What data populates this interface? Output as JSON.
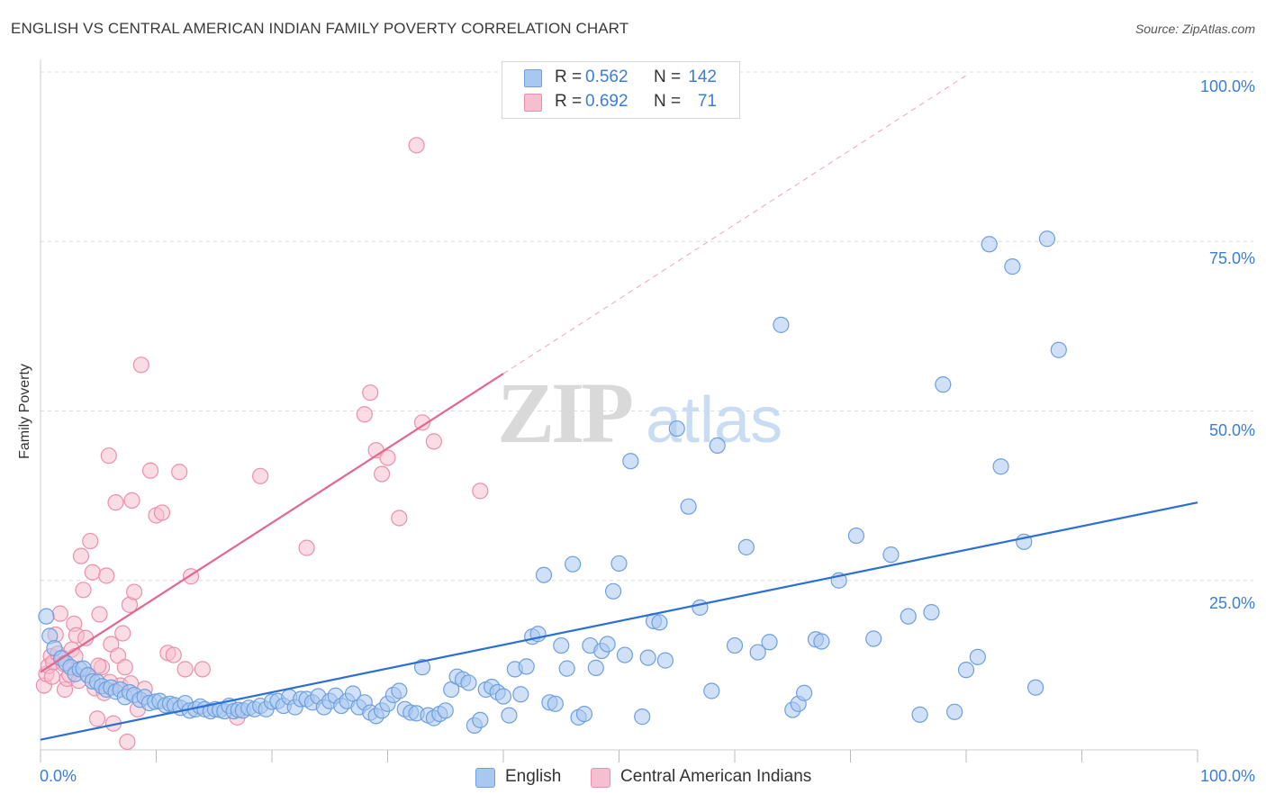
{
  "header": {
    "title": "ENGLISH VS CENTRAL AMERICAN INDIAN FAMILY POVERTY CORRELATION CHART",
    "source": "Source: ZipAtlas.com"
  },
  "watermark": {
    "zip": "ZIP",
    "atlas": "atlas"
  },
  "colors": {
    "english_fill": "#a9c8f0",
    "english_stroke": "#6e9fe0",
    "english_line": "#2b6fd6",
    "cai_fill": "#f6bfcf",
    "cai_stroke": "#ec8fab",
    "cai_line": "#e4668e",
    "axis_text": "#3b7dd8",
    "grid": "#dcdcdc"
  },
  "legend": {
    "rows": [
      {
        "r_label": "R =",
        "r_value": "0.562",
        "n_label": "N =",
        "n_value": "142"
      },
      {
        "r_label": "R =",
        "r_value": "0.692",
        "n_label": "N =",
        "n_value": "71"
      }
    ]
  },
  "bottom_legend": [
    "English",
    "Central American Indians"
  ],
  "chart_data": {
    "type": "scatter",
    "title": "ENGLISH VS CENTRAL AMERICAN INDIAN FAMILY POVERTY CORRELATION CHART",
    "xlabel": "",
    "ylabel": "Family Poverty",
    "xlim": [
      0,
      100
    ],
    "ylim": [
      0,
      100
    ],
    "x_tick_labels": [
      "0.0%",
      "100.0%"
    ],
    "y_ticks": [
      25,
      50,
      75,
      100
    ],
    "y_tick_labels": [
      "25.0%",
      "50.0%",
      "75.0%",
      "100.0%"
    ],
    "grid": true,
    "legend_position": "top-center",
    "series": [
      {
        "name": "English",
        "r": 0.562,
        "n": 142,
        "trend": {
          "x": [
            0,
            100
          ],
          "y": [
            1.5,
            36.5
          ],
          "style": "solid"
        },
        "points": [
          [
            0.5,
            19.7
          ],
          [
            0.8,
            16.8
          ],
          [
            1.2,
            15.0
          ],
          [
            1.8,
            13.5
          ],
          [
            2.2,
            12.8
          ],
          [
            2.6,
            12.2
          ],
          [
            3.0,
            11.2
          ],
          [
            3.4,
            11.9
          ],
          [
            3.7,
            12.0
          ],
          [
            4.1,
            11.0
          ],
          [
            4.5,
            10.1
          ],
          [
            4.9,
            10.0
          ],
          [
            5.3,
            9.4
          ],
          [
            5.7,
            8.9
          ],
          [
            6.1,
            9.2
          ],
          [
            6.5,
            8.6
          ],
          [
            6.9,
            8.9
          ],
          [
            7.3,
            7.8
          ],
          [
            7.7,
            8.5
          ],
          [
            8.1,
            8.1
          ],
          [
            8.6,
            7.4
          ],
          [
            9.0,
            7.8
          ],
          [
            9.4,
            6.9
          ],
          [
            9.9,
            7.1
          ],
          [
            10.3,
            7.2
          ],
          [
            10.8,
            6.6
          ],
          [
            11.2,
            6.8
          ],
          [
            11.6,
            6.6
          ],
          [
            12.1,
            6.2
          ],
          [
            12.5,
            6.9
          ],
          [
            12.9,
            5.8
          ],
          [
            13.4,
            6.0
          ],
          [
            13.8,
            6.4
          ],
          [
            14.2,
            6.0
          ],
          [
            14.7,
            5.7
          ],
          [
            15.1,
            6.0
          ],
          [
            15.5,
            5.9
          ],
          [
            15.9,
            5.7
          ],
          [
            16.3,
            6.5
          ],
          [
            16.7,
            5.7
          ],
          [
            17.1,
            5.9
          ],
          [
            17.5,
            5.8
          ],
          [
            18.0,
            6.2
          ],
          [
            18.5,
            6.0
          ],
          [
            19.0,
            6.5
          ],
          [
            19.5,
            6.0
          ],
          [
            20.0,
            7.1
          ],
          [
            20.5,
            7.2
          ],
          [
            21.0,
            6.5
          ],
          [
            21.5,
            7.8
          ],
          [
            22.0,
            6.3
          ],
          [
            22.5,
            7.5
          ],
          [
            23.0,
            7.5
          ],
          [
            23.5,
            7.0
          ],
          [
            24.0,
            7.9
          ],
          [
            24.5,
            6.3
          ],
          [
            25.0,
            7.2
          ],
          [
            25.5,
            8.0
          ],
          [
            26.0,
            6.5
          ],
          [
            26.5,
            7.2
          ],
          [
            27.0,
            8.3
          ],
          [
            27.5,
            6.3
          ],
          [
            28.0,
            7.0
          ],
          [
            28.5,
            5.5
          ],
          [
            29.0,
            5.0
          ],
          [
            29.5,
            5.8
          ],
          [
            30.0,
            6.8
          ],
          [
            30.5,
            8.1
          ],
          [
            31.0,
            8.7
          ],
          [
            31.5,
            6.0
          ],
          [
            32.0,
            5.5
          ],
          [
            32.5,
            5.4
          ],
          [
            33.0,
            12.2
          ],
          [
            33.5,
            5.1
          ],
          [
            34.0,
            4.7
          ],
          [
            34.5,
            5.3
          ],
          [
            35.0,
            5.8
          ],
          [
            35.5,
            8.9
          ],
          [
            36.0,
            10.8
          ],
          [
            36.5,
            10.4
          ],
          [
            37.0,
            9.9
          ],
          [
            37.5,
            3.6
          ],
          [
            38.0,
            4.4
          ],
          [
            38.5,
            8.9
          ],
          [
            39.0,
            9.3
          ],
          [
            39.5,
            8.5
          ],
          [
            40.0,
            7.9
          ],
          [
            40.5,
            5.1
          ],
          [
            41.0,
            11.9
          ],
          [
            41.5,
            8.2
          ],
          [
            42.0,
            12.3
          ],
          [
            42.5,
            16.7
          ],
          [
            43.0,
            17.1
          ],
          [
            43.5,
            25.8
          ],
          [
            44.0,
            7.0
          ],
          [
            44.5,
            6.8
          ],
          [
            45.0,
            15.4
          ],
          [
            45.5,
            12.0
          ],
          [
            46.0,
            27.4
          ],
          [
            46.5,
            4.8
          ],
          [
            47.0,
            5.3
          ],
          [
            47.5,
            15.4
          ],
          [
            48.0,
            12.1
          ],
          [
            48.5,
            14.6
          ],
          [
            49.0,
            15.6
          ],
          [
            49.5,
            23.4
          ],
          [
            50.0,
            27.5
          ],
          [
            50.5,
            14.0
          ],
          [
            51.0,
            42.6
          ],
          [
            52.0,
            4.9
          ],
          [
            52.5,
            13.6
          ],
          [
            53.0,
            19.0
          ],
          [
            53.5,
            18.8
          ],
          [
            54.0,
            13.2
          ],
          [
            55.0,
            47.4
          ],
          [
            56.0,
            35.9
          ],
          [
            57.0,
            21.0
          ],
          [
            58.0,
            8.7
          ],
          [
            58.5,
            44.9
          ],
          [
            60.0,
            15.4
          ],
          [
            61.0,
            29.9
          ],
          [
            62.0,
            14.4
          ],
          [
            63.0,
            15.9
          ],
          [
            64.0,
            62.7
          ],
          [
            65.0,
            5.9
          ],
          [
            65.5,
            6.8
          ],
          [
            66.0,
            8.4
          ],
          [
            67.0,
            16.3
          ],
          [
            67.5,
            16.0
          ],
          [
            69.0,
            25.0
          ],
          [
            70.5,
            31.6
          ],
          [
            72.0,
            16.4
          ],
          [
            73.5,
            28.8
          ],
          [
            75.0,
            19.7
          ],
          [
            76.0,
            5.2
          ],
          [
            77.0,
            20.3
          ],
          [
            78.0,
            53.9
          ],
          [
            79.0,
            5.6
          ],
          [
            80.0,
            11.8
          ],
          [
            81.0,
            13.7
          ],
          [
            82.0,
            74.6
          ],
          [
            83.0,
            41.8
          ],
          [
            84.0,
            71.3
          ],
          [
            85.0,
            30.7
          ],
          [
            86.0,
            9.2
          ],
          [
            87.0,
            75.4
          ],
          [
            88.0,
            59.0
          ]
        ]
      },
      {
        "name": "Central American Indians",
        "r": 0.692,
        "n": 71,
        "trend": {
          "x": [
            0,
            40
          ],
          "y": [
            11.5,
            55.5
          ],
          "style": "solid",
          "extension": {
            "x": [
              40,
              80
            ],
            "y": [
              55.5,
              99.5
            ],
            "style": "dashed"
          }
        },
        "points": [
          [
            0.3,
            9.5
          ],
          [
            0.5,
            11.2
          ],
          [
            0.7,
            12.4
          ],
          [
            0.9,
            13.8
          ],
          [
            1.1,
            12.9
          ],
          [
            1.3,
            17.0
          ],
          [
            1.5,
            14.2
          ],
          [
            1.7,
            20.1
          ],
          [
            1.9,
            13.6
          ],
          [
            2.1,
            8.9
          ],
          [
            2.3,
            10.5
          ],
          [
            2.5,
            11.1
          ],
          [
            2.7,
            14.8
          ],
          [
            2.9,
            18.6
          ],
          [
            3.1,
            16.9
          ],
          [
            3.3,
            10.2
          ],
          [
            3.5,
            28.6
          ],
          [
            3.7,
            23.6
          ],
          [
            3.9,
            16.5
          ],
          [
            4.1,
            11.1
          ],
          [
            4.3,
            30.8
          ],
          [
            4.5,
            26.2
          ],
          [
            4.7,
            9.1
          ],
          [
            4.9,
            4.6
          ],
          [
            5.1,
            20.0
          ],
          [
            5.3,
            12.2
          ],
          [
            5.5,
            8.4
          ],
          [
            5.7,
            25.7
          ],
          [
            5.9,
            43.4
          ],
          [
            6.1,
            15.6
          ],
          [
            6.3,
            3.9
          ],
          [
            6.5,
            36.5
          ],
          [
            6.7,
            13.9
          ],
          [
            6.9,
            9.5
          ],
          [
            7.1,
            17.2
          ],
          [
            7.3,
            12.2
          ],
          [
            7.5,
            1.2
          ],
          [
            7.7,
            21.4
          ],
          [
            7.9,
            36.8
          ],
          [
            8.1,
            23.3
          ],
          [
            8.4,
            6.0
          ],
          [
            8.7,
            56.8
          ],
          [
            9.0,
            9.0
          ],
          [
            9.5,
            41.2
          ],
          [
            10.0,
            34.6
          ],
          [
            10.5,
            35.0
          ],
          [
            11.0,
            14.3
          ],
          [
            11.5,
            14.0
          ],
          [
            12.0,
            41.0
          ],
          [
            12.5,
            11.9
          ],
          [
            13.0,
            25.6
          ],
          [
            14.0,
            11.9
          ],
          [
            17.0,
            4.8
          ],
          [
            19.0,
            40.4
          ],
          [
            23.0,
            29.8
          ],
          [
            28.0,
            49.5
          ],
          [
            28.5,
            52.7
          ],
          [
            29.0,
            44.2
          ],
          [
            29.5,
            40.7
          ],
          [
            30.0,
            43.1
          ],
          [
            31.0,
            34.2
          ],
          [
            32.5,
            89.2
          ],
          [
            33.0,
            48.3
          ],
          [
            34.0,
            45.5
          ],
          [
            38.0,
            38.2
          ],
          [
            7.8,
            9.8
          ],
          [
            6.0,
            10.0
          ],
          [
            5.0,
            12.4
          ],
          [
            3.0,
            13.8
          ],
          [
            2.0,
            12.7
          ],
          [
            1.0,
            10.8
          ]
        ]
      }
    ]
  }
}
